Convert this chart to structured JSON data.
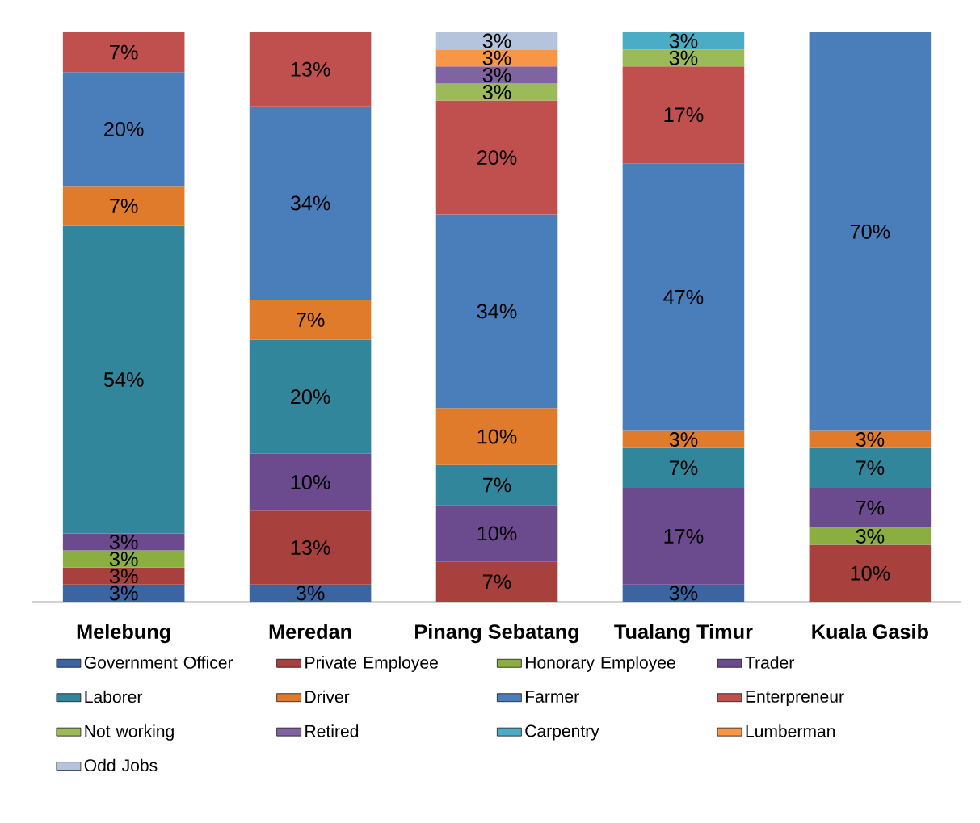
{
  "chart_data": {
    "type": "bar",
    "stacked": true,
    "legend": "bottom",
    "categories": [
      "Melebung",
      "Meredan",
      "Pinang Sebatang",
      "Tualang Timur",
      "Kuala Gasib"
    ],
    "series": [
      {
        "name": "Government Officer",
        "color": "#3c64a0",
        "values": [
          3,
          3,
          null,
          3,
          null
        ],
        "value_labels": [
          "3%",
          "3%",
          null,
          "3%",
          null
        ]
      },
      {
        "name": "Private Employee",
        "color": "#a8403d",
        "values": [
          3,
          13,
          7,
          null,
          10
        ],
        "value_labels": [
          "3%",
          "13%",
          "7%",
          null,
          "10%"
        ]
      },
      {
        "name": "Honorary Employee",
        "color": "#8aae3f",
        "values": [
          3,
          null,
          null,
          null,
          3
        ],
        "value_labels": [
          "3%",
          null,
          null,
          null,
          "3%"
        ]
      },
      {
        "name": "Trader",
        "color": "#6c4a8e",
        "values": [
          3,
          10,
          10,
          17,
          7
        ],
        "value_labels": [
          "3%",
          "10%",
          "10%",
          "17%",
          "7%"
        ]
      },
      {
        "name": "Laborer",
        "color": "#31869b",
        "values": [
          54,
          20,
          7,
          7,
          7
        ],
        "value_labels": [
          "54%",
          "20%",
          "7%",
          "7%",
          "7%"
        ]
      },
      {
        "name": "Driver",
        "color": "#e07b2c",
        "values": [
          7,
          7,
          10,
          3,
          3
        ],
        "value_labels": [
          "7%",
          "7%",
          "10%",
          "3%",
          "3%"
        ]
      },
      {
        "name": "Farmer",
        "color": "#4a7ebb",
        "values": [
          20,
          34,
          34,
          47,
          70
        ],
        "value_labels": [
          "20%",
          "34%",
          "34%",
          "47%",
          "70%"
        ]
      },
      {
        "name": "Enterpreneur",
        "color": "#c0504d",
        "values": [
          7,
          13,
          20,
          17,
          null
        ],
        "value_labels": [
          "7%",
          "13%",
          "20%",
          "17%",
          null
        ]
      },
      {
        "name": "Not working",
        "color": "#9bbb59",
        "values": [
          null,
          null,
          3,
          3,
          null
        ],
        "value_labels": [
          null,
          null,
          "3%",
          "3%",
          null
        ]
      },
      {
        "name": "Retired",
        "color": "#8064a2",
        "values": [
          null,
          null,
          3,
          null,
          null
        ],
        "value_labels": [
          null,
          null,
          "3%",
          null,
          null
        ]
      },
      {
        "name": "Carpentry",
        "color": "#4bacc6",
        "values": [
          null,
          null,
          null,
          3,
          null
        ],
        "value_labels": [
          null,
          null,
          null,
          "3%",
          null
        ]
      },
      {
        "name": "Lumberman",
        "color": "#f79646",
        "values": [
          null,
          null,
          3,
          null,
          null
        ],
        "value_labels": [
          null,
          null,
          "3%",
          null,
          null
        ]
      },
      {
        "name": "Odd Jobs",
        "color": "#b3c4dc",
        "values": [
          null,
          null,
          3,
          null,
          null
        ],
        "value_labels": [
          null,
          null,
          "3%",
          null,
          null
        ]
      }
    ]
  }
}
